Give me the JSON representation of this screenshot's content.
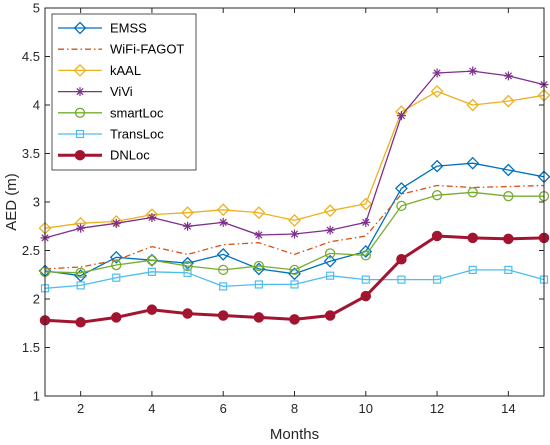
{
  "chart_data": {
    "type": "line",
    "xlabel": "Months",
    "ylabel": "AED (m)",
    "xlim": [
      1,
      15
    ],
    "ylim": [
      1,
      5
    ],
    "xticks": [
      2,
      4,
      6,
      8,
      10,
      12,
      14
    ],
    "yticks": [
      1,
      1.5,
      2,
      2.5,
      3,
      3.5,
      4,
      4.5,
      5
    ],
    "grid": false,
    "legend_position": "top-left",
    "x": [
      1,
      2,
      3,
      4,
      5,
      6,
      7,
      8,
      9,
      10,
      11,
      12,
      13,
      14,
      15
    ],
    "series": [
      {
        "name": "EMSS",
        "color": "#0072BD",
        "marker": "diamond",
        "dash": "solid",
        "width": 1.3,
        "values": [
          2.29,
          2.24,
          2.43,
          2.4,
          2.37,
          2.46,
          2.31,
          2.26,
          2.39,
          2.49,
          3.14,
          3.37,
          3.4,
          3.33,
          3.26
        ]
      },
      {
        "name": "WiFi-FAGOT",
        "color": "#D95319",
        "marker": "none",
        "dash": "dashdot",
        "width": 1.3,
        "values": [
          2.31,
          2.33,
          2.4,
          2.54,
          2.46,
          2.56,
          2.58,
          2.46,
          2.59,
          2.65,
          3.08,
          3.17,
          3.15,
          3.16,
          3.17
        ]
      },
      {
        "name": "kAAL",
        "color": "#EDB120",
        "marker": "diamond",
        "dash": "solid",
        "width": 1.3,
        "values": [
          2.73,
          2.78,
          2.8,
          2.87,
          2.89,
          2.92,
          2.89,
          2.81,
          2.91,
          2.98,
          3.93,
          4.14,
          4.0,
          4.04,
          4.1
        ]
      },
      {
        "name": "ViVi",
        "color": "#7E2F8E",
        "marker": "asterisk",
        "dash": "solid",
        "width": 1.3,
        "values": [
          2.63,
          2.73,
          2.78,
          2.84,
          2.75,
          2.79,
          2.66,
          2.67,
          2.71,
          2.79,
          3.89,
          4.33,
          4.35,
          4.3,
          4.21
        ]
      },
      {
        "name": "smartLoc",
        "color": "#77AC30",
        "marker": "circle",
        "dash": "solid",
        "width": 1.3,
        "values": [
          2.28,
          2.27,
          2.35,
          2.4,
          2.34,
          2.3,
          2.34,
          2.3,
          2.47,
          2.45,
          2.96,
          3.07,
          3.1,
          3.06,
          3.06
        ]
      },
      {
        "name": "TransLoc",
        "color": "#4DBEEE",
        "marker": "square",
        "dash": "solid",
        "width": 1.3,
        "values": [
          2.11,
          2.14,
          2.22,
          2.28,
          2.27,
          2.13,
          2.15,
          2.15,
          2.24,
          2.2,
          2.2,
          2.2,
          2.3,
          2.3,
          2.2
        ]
      },
      {
        "name": "DNLoc",
        "color": "#A2142F",
        "marker": "circle-filled",
        "dash": "solid",
        "width": 3,
        "values": [
          1.78,
          1.76,
          1.81,
          1.89,
          1.85,
          1.83,
          1.81,
          1.79,
          1.83,
          2.03,
          2.41,
          2.65,
          2.63,
          2.62,
          2.63
        ]
      }
    ]
  }
}
